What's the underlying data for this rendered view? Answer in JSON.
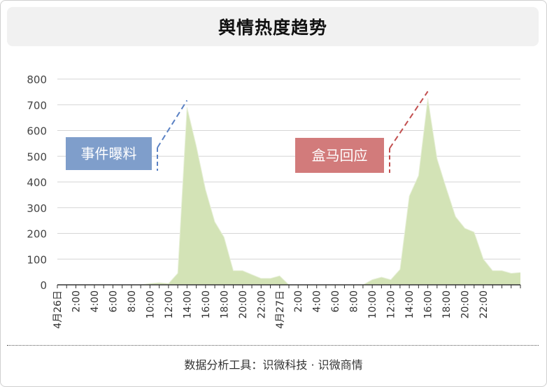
{
  "title": "舆情热度趋势",
  "footer": "数据分析工具：识微科技 · 识微商情",
  "chart_data": {
    "type": "area",
    "ylim": [
      0,
      800
    ],
    "yticks": [
      0,
      100,
      200,
      300,
      400,
      500,
      600,
      700,
      800
    ],
    "grid": true,
    "fill_color": "#d3e3b6",
    "x_labels": [
      "4月26日",
      "2:00",
      "4:00",
      "6:00",
      "8:00",
      "10:00",
      "12:00",
      "14:00",
      "16:00",
      "18:00",
      "20:00",
      "22:00",
      "4月27日",
      "2:00",
      "4:00",
      "6:00",
      "8:00",
      "10:00",
      "12:00",
      "14:00",
      "16:00",
      "18:00",
      "20:00",
      "22:00"
    ],
    "values": [
      0,
      0,
      0,
      0,
      0,
      0,
      0,
      0,
      0,
      0,
      5,
      8,
      5,
      45,
      690,
      540,
      370,
      245,
      185,
      55,
      55,
      40,
      25,
      25,
      35,
      0,
      0,
      0,
      0,
      0,
      0,
      0,
      0,
      0,
      20,
      30,
      20,
      60,
      345,
      425,
      725,
      490,
      375,
      265,
      220,
      205,
      100,
      55,
      55,
      45,
      48
    ],
    "annotations": [
      {
        "label": "事件曝料",
        "index": 14,
        "value": 690,
        "color": "#7f9ecb",
        "line_color": "#5b82c4"
      },
      {
        "label": "盒马回应",
        "index": 40,
        "value": 725,
        "color": "#d27b7b",
        "line_color": "#c24f4f"
      }
    ]
  }
}
